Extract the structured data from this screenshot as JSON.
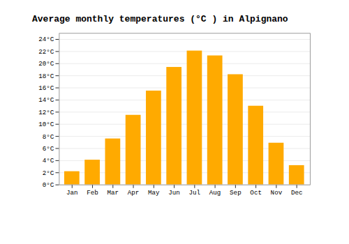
{
  "chart_data": {
    "type": "bar",
    "title": "Average monthly temperatures (°C ) in Alpignano",
    "categories": [
      "Jan",
      "Feb",
      "Mar",
      "Apr",
      "May",
      "Jun",
      "Jul",
      "Aug",
      "Sep",
      "Oct",
      "Nov",
      "Dec"
    ],
    "values": [
      2.2,
      4.1,
      7.6,
      11.5,
      15.5,
      19.4,
      22.1,
      21.3,
      18.2,
      13.0,
      6.9,
      3.2
    ],
    "color": "#FFAA00",
    "ylim": [
      0,
      25
    ],
    "yticks": [
      {
        "value": 0,
        "label": "0°C"
      },
      {
        "value": 2,
        "label": "2°C"
      },
      {
        "value": 4,
        "label": "4°C"
      },
      {
        "value": 6,
        "label": "6°C"
      },
      {
        "value": 8,
        "label": "8°C"
      },
      {
        "value": 10,
        "label": "10°C"
      },
      {
        "value": 12,
        "label": "12°C"
      },
      {
        "value": 14,
        "label": "14°C"
      },
      {
        "value": 16,
        "label": "16°C"
      },
      {
        "value": 18,
        "label": "18°C"
      },
      {
        "value": 20,
        "label": "20°C"
      },
      {
        "value": 22,
        "label": "22°C"
      },
      {
        "value": 24,
        "label": "24°C"
      }
    ],
    "grid": true
  }
}
